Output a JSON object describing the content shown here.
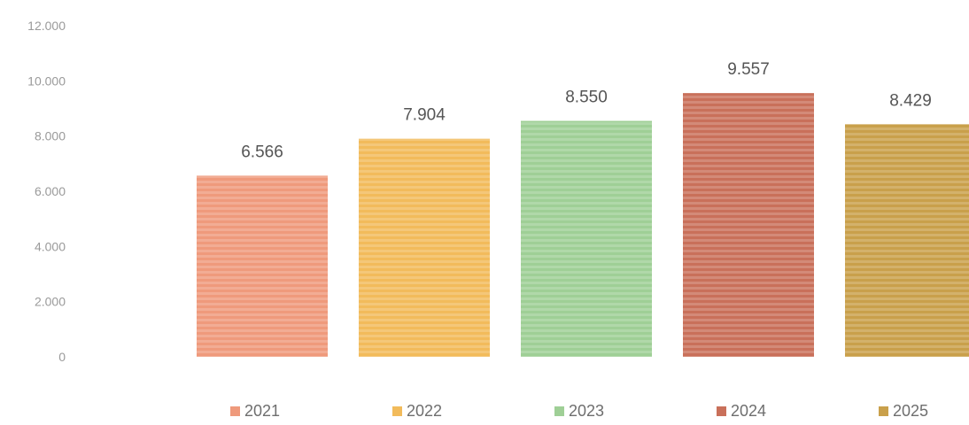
{
  "chart_data": {
    "type": "bar",
    "categories": [
      "2021",
      "2022",
      "2023",
      "2024",
      "2025"
    ],
    "values": [
      6566,
      7904,
      8550,
      9557,
      8429
    ],
    "data_labels": [
      "6.566",
      "7.904",
      "8.550",
      "9.557",
      "8.429"
    ],
    "colors": [
      "#EF9A7C",
      "#F2BB5B",
      "#9FCF96",
      "#C9705A",
      "#C9A04B"
    ],
    "ylim": [
      0,
      12000
    ],
    "y_ticks": [
      0,
      2000,
      4000,
      6000,
      8000,
      10000,
      12000
    ],
    "y_tick_labels": [
      "0",
      "2.000",
      "4.000",
      "6.000",
      "8.000",
      "10.000",
      "12.000"
    ],
    "legend": [
      "2021",
      "2022",
      "2023",
      "2024",
      "2025"
    ],
    "legend_position": "bottom",
    "grid": false,
    "title": "",
    "xlabel": "",
    "ylabel": ""
  }
}
